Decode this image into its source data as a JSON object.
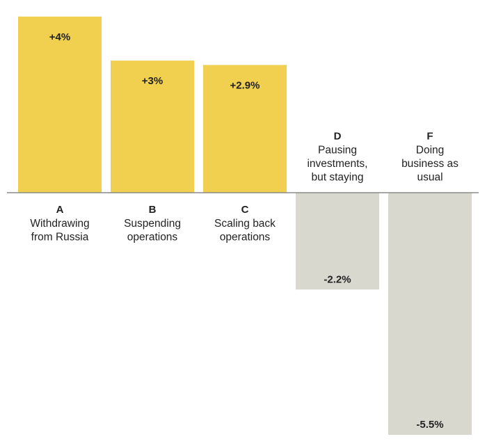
{
  "chart_data": {
    "type": "bar",
    "title": "",
    "xlabel": "",
    "ylabel": "",
    "ylim": [
      -5.6,
      4.2
    ],
    "categories": [
      "A",
      "B",
      "C",
      "D",
      "F"
    ],
    "category_descriptions": [
      [
        "Withdrawing",
        "from Russia"
      ],
      [
        "Suspending",
        "operations"
      ],
      [
        "Scaling back",
        "operations"
      ],
      [
        "Pausing",
        "investments,",
        "but staying"
      ],
      [
        "Doing",
        "business as",
        "usual"
      ]
    ],
    "values": [
      4,
      3,
      2.9,
      -2.2,
      -5.5
    ],
    "value_labels": [
      "+4%",
      "+3%",
      "+2.9%",
      "-2.2%",
      "-5.5%"
    ],
    "colors": {
      "positive": "#f1cf4f",
      "negative": "#d8d8cf",
      "baseline": "#8a8a8a",
      "text": "#222222"
    }
  }
}
